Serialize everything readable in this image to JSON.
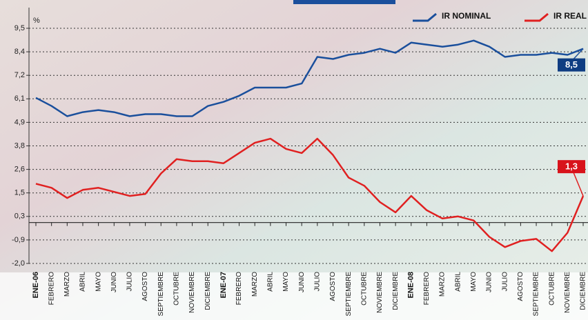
{
  "chart_data": {
    "type": "line",
    "y_label": "%",
    "categories": [
      "ENE-06",
      "FEBRERO",
      "MARZO",
      "ABRIL",
      "MAYO",
      "JUNIO",
      "JULIO",
      "AGOSTO",
      "SEPTIEMBRE",
      "OCTUBRE",
      "NOVIEMBRE",
      "DICIEMBRE",
      "ENE-07",
      "FEBRERO",
      "MARZO",
      "ABRIL",
      "MAYO",
      "JUNIO",
      "JULIO",
      "AGOSTO",
      "SEPTIEMBRE",
      "OCTUBRE",
      "NOVIEMBRE",
      "DICIEMBRE",
      "ENE-08",
      "FEBRERO",
      "MARZO",
      "ABRIL",
      "MAYO",
      "JUNIO",
      "JULIO",
      "AGOSTO",
      "SEPTIEMBRE",
      "OCTUBRE",
      "NOVIEMBRE",
      "DICIEMBRE"
    ],
    "series": [
      {
        "name": "IR NOMINAL",
        "color": "#1a4f9c",
        "values": [
          6.1,
          5.7,
          5.2,
          5.4,
          5.5,
          5.4,
          5.2,
          5.3,
          5.3,
          5.2,
          5.2,
          5.7,
          5.9,
          6.2,
          6.6,
          6.6,
          6.6,
          6.8,
          8.1,
          8.0,
          8.2,
          8.3,
          8.5,
          8.3,
          8.8,
          8.7,
          8.6,
          8.7,
          8.9,
          8.6,
          8.1,
          8.2,
          8.2,
          8.3,
          8.2,
          8.5
        ],
        "value_labels": [
          null,
          null,
          null,
          null,
          null,
          null,
          null,
          null,
          null,
          null,
          null,
          null,
          null,
          null,
          null,
          null,
          null,
          null,
          null,
          null,
          null,
          null,
          null,
          null,
          null,
          null,
          null,
          null,
          null,
          null,
          null,
          null,
          null,
          null,
          null,
          "8,5"
        ]
      },
      {
        "name": "IR REAL",
        "color": "#e02020",
        "values": [
          1.9,
          1.7,
          1.2,
          1.6,
          1.7,
          1.5,
          1.3,
          1.4,
          2.4,
          3.1,
          3.0,
          3.0,
          2.9,
          3.4,
          3.9,
          4.1,
          3.6,
          3.4,
          4.1,
          3.3,
          2.2,
          1.8,
          1.0,
          0.5,
          1.3,
          0.6,
          0.2,
          0.3,
          0.1,
          -0.7,
          -1.2,
          -0.9,
          -0.8,
          -1.4,
          -0.5,
          1.3
        ],
        "value_labels": [
          null,
          null,
          null,
          null,
          null,
          null,
          null,
          null,
          null,
          null,
          null,
          null,
          null,
          null,
          null,
          null,
          null,
          null,
          null,
          null,
          null,
          null,
          null,
          null,
          null,
          null,
          null,
          null,
          null,
          null,
          null,
          null,
          null,
          null,
          null,
          "1,3"
        ]
      }
    ],
    "ylim": [
      -2.0,
      9.5
    ],
    "yticks": [
      {
        "value": 9.5,
        "label": "9,5"
      },
      {
        "value": 8.35,
        "label": "8,4"
      },
      {
        "value": 7.2,
        "label": "7,2"
      },
      {
        "value": 6.05,
        "label": "6,1"
      },
      {
        "value": 4.9,
        "label": "4,9"
      },
      {
        "value": 3.75,
        "label": "3,8"
      },
      {
        "value": 2.6,
        "label": "2,6"
      },
      {
        "value": 1.45,
        "label": "1,5"
      },
      {
        "value": 0.3,
        "label": "0,3"
      },
      {
        "value": -0.85,
        "label": "-0,9"
      },
      {
        "value": -2.0,
        "label": "-2,0"
      }
    ],
    "grid": true
  }
}
